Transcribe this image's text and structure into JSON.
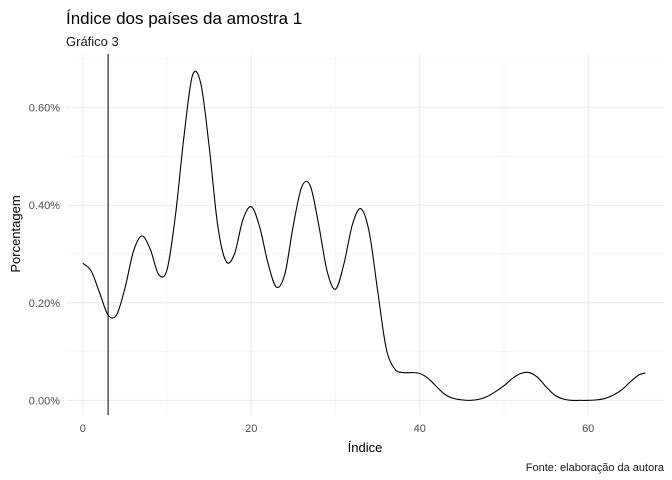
{
  "chart_data": {
    "type": "line",
    "title": "Índice dos países da amostra 1",
    "subtitle": "Gráfico 3",
    "xlabel": "Índice",
    "ylabel": "Porcentagem",
    "caption": "Fonte: elaboração da autora",
    "xlim": [
      -2,
      69
    ],
    "ylim": [
      -0.0003,
      0.0071
    ],
    "x_ticks": [
      0,
      20,
      40,
      60
    ],
    "x_tick_labels": [
      "0",
      "20",
      "40",
      "60"
    ],
    "y_ticks": [
      0,
      0.002,
      0.004,
      0.006
    ],
    "y_tick_labels": [
      "0.00%",
      "0.20%",
      "0.40%",
      "0.60%"
    ],
    "grid": true,
    "vline": 3,
    "series": [
      {
        "color": "#000000",
        "x": [
          0,
          1,
          2,
          3,
          4,
          5,
          6,
          7,
          8,
          9,
          10,
          11,
          12,
          13,
          14,
          15,
          16,
          17,
          18,
          19,
          20,
          21,
          22,
          23,
          24,
          25,
          26,
          27,
          28,
          29,
          30,
          31,
          32,
          33,
          34,
          35,
          36,
          37,
          38,
          39,
          40,
          41,
          42,
          43,
          44,
          45,
          46,
          47,
          48,
          49,
          50,
          51,
          52,
          53,
          54,
          55,
          56,
          57,
          58,
          59,
          60,
          61,
          62,
          63,
          64,
          65,
          66,
          66.8
        ],
        "y": [
          0.00281,
          0.00265,
          0.0022,
          0.00175,
          0.00175,
          0.0023,
          0.00305,
          0.00337,
          0.0031,
          0.00258,
          0.00268,
          0.0038,
          0.0054,
          0.00665,
          0.0065,
          0.0052,
          0.0036,
          0.00285,
          0.003,
          0.0037,
          0.00397,
          0.00355,
          0.0028,
          0.00232,
          0.0026,
          0.0036,
          0.00438,
          0.0044,
          0.0036,
          0.00265,
          0.00228,
          0.0028,
          0.0036,
          0.00393,
          0.00345,
          0.00225,
          0.00108,
          0.00065,
          0.00057,
          0.00057,
          0.00055,
          0.00045,
          0.00028,
          0.00012,
          4e-05,
          1e-05,
          0.0,
          2e-05,
          8e-05,
          0.00018,
          0.0003,
          0.00045,
          0.00055,
          0.00057,
          0.00047,
          0.00028,
          0.00011,
          3e-05,
          0.0,
          0.0,
          0.0,
          1e-05,
          4e-05,
          0.00011,
          0.00022,
          0.00038,
          0.00052,
          0.00056
        ]
      }
    ]
  }
}
